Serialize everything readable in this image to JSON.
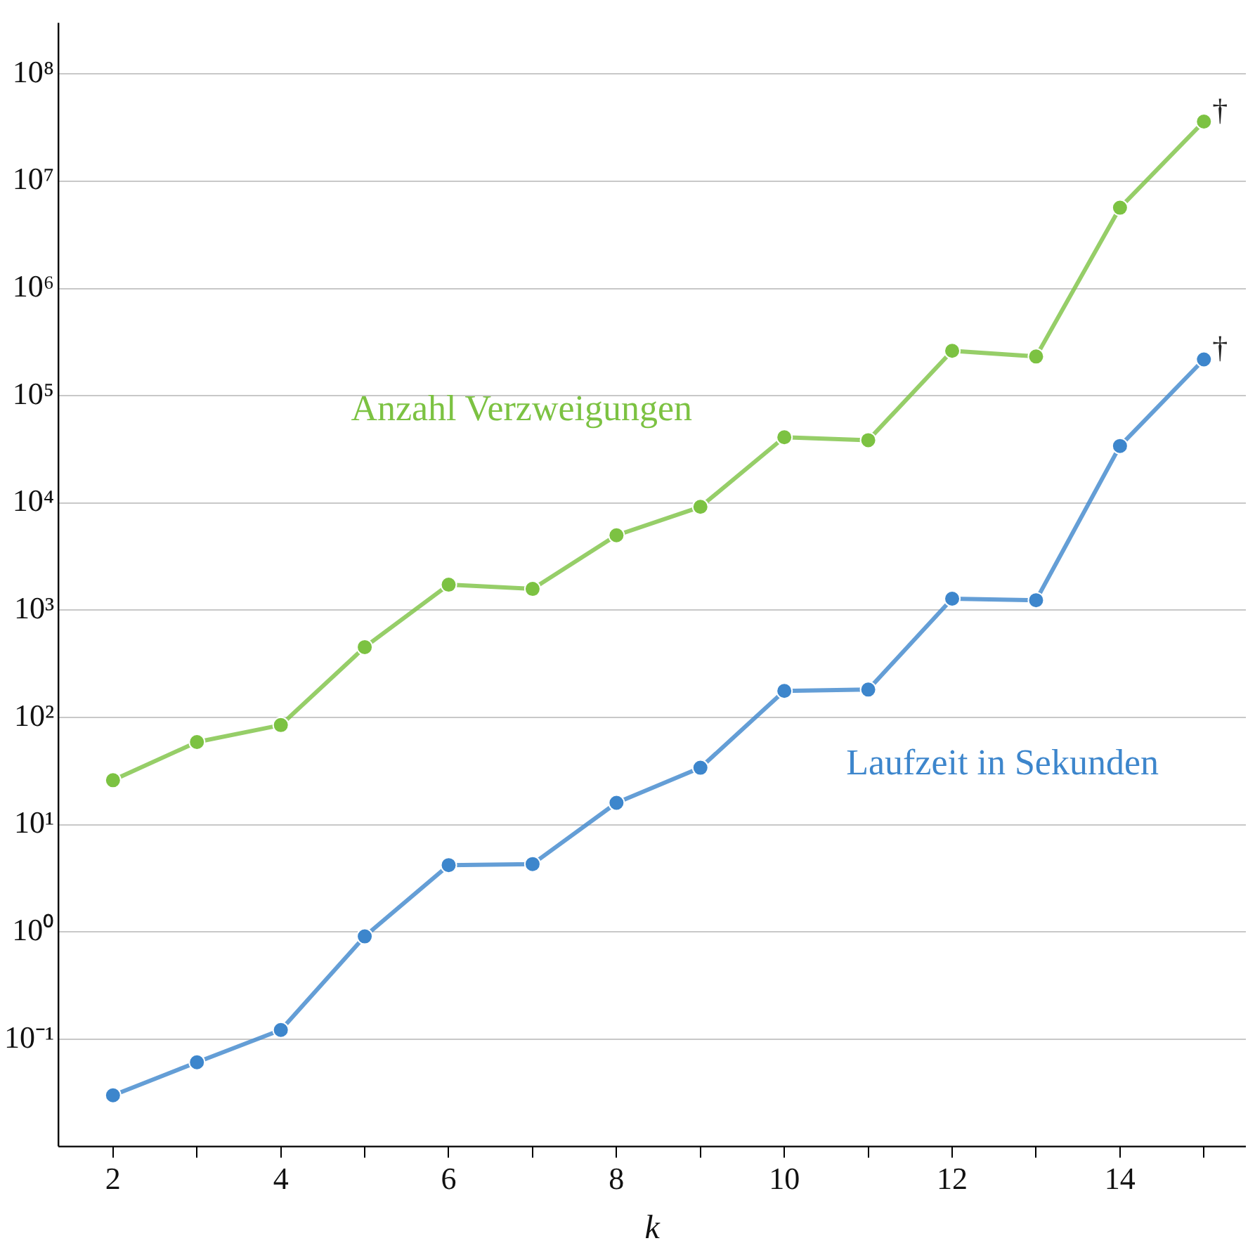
{
  "chart_data": {
    "type": "line",
    "xlabel": "k",
    "x": [
      2,
      3,
      4,
      5,
      6,
      7,
      8,
      9,
      10,
      11,
      12,
      13,
      14,
      15
    ],
    "series": [
      {
        "name": "Anzahl Verzweigungen",
        "color": "#7cc242",
        "values": [
          26,
          59,
          85,
          453,
          1730,
          1580,
          5000,
          9200,
          41000,
          38500,
          262000,
          232000,
          5660000,
          36000000
        ]
      },
      {
        "name": "Laufzeit in Sekunden",
        "color": "#3d86cc",
        "values": [
          0.03,
          0.061,
          0.122,
          0.91,
          4.2,
          4.3,
          16,
          34,
          177,
          182,
          1280,
          1240,
          34000,
          218000
        ]
      }
    ],
    "log": "y",
    "xlim": [
      1.35,
      15.5
    ],
    "ylim": [
      0.01,
      300000000
    ],
    "xticks": [
      2,
      {
        "value": 3,
        "label": null
      },
      4,
      {
        "value": 5,
        "label": null
      },
      6,
      {
        "value": 7,
        "label": null
      },
      8,
      {
        "value": 9,
        "label": null
      },
      10,
      {
        "value": 11,
        "label": null
      },
      12,
      {
        "value": 13,
        "label": null
      },
      14,
      {
        "value": 15,
        "label": null
      }
    ],
    "yticks": [
      {
        "value": 0.1,
        "label": "10⁻¹"
      },
      {
        "value": 1,
        "label": "10⁰"
      },
      {
        "value": 10,
        "label": "10¹"
      },
      {
        "value": 100,
        "label": "10²"
      },
      {
        "value": 1000,
        "label": "10³"
      },
      {
        "value": 10000,
        "label": "10⁴"
      },
      {
        "value": 100000,
        "label": "10⁵"
      },
      {
        "value": 1000000,
        "label": "10⁶"
      },
      {
        "value": 10000000,
        "label": "10⁷"
      },
      {
        "value": 100000000,
        "label": "10⁸"
      }
    ],
    "grid": "y",
    "legend": false,
    "marker": "circle",
    "line_style": "solid",
    "annotations": [
      {
        "text": "†",
        "x": 15,
        "y": 36000000
      },
      {
        "text": "†",
        "x": 15,
        "y": 218000
      }
    ]
  }
}
